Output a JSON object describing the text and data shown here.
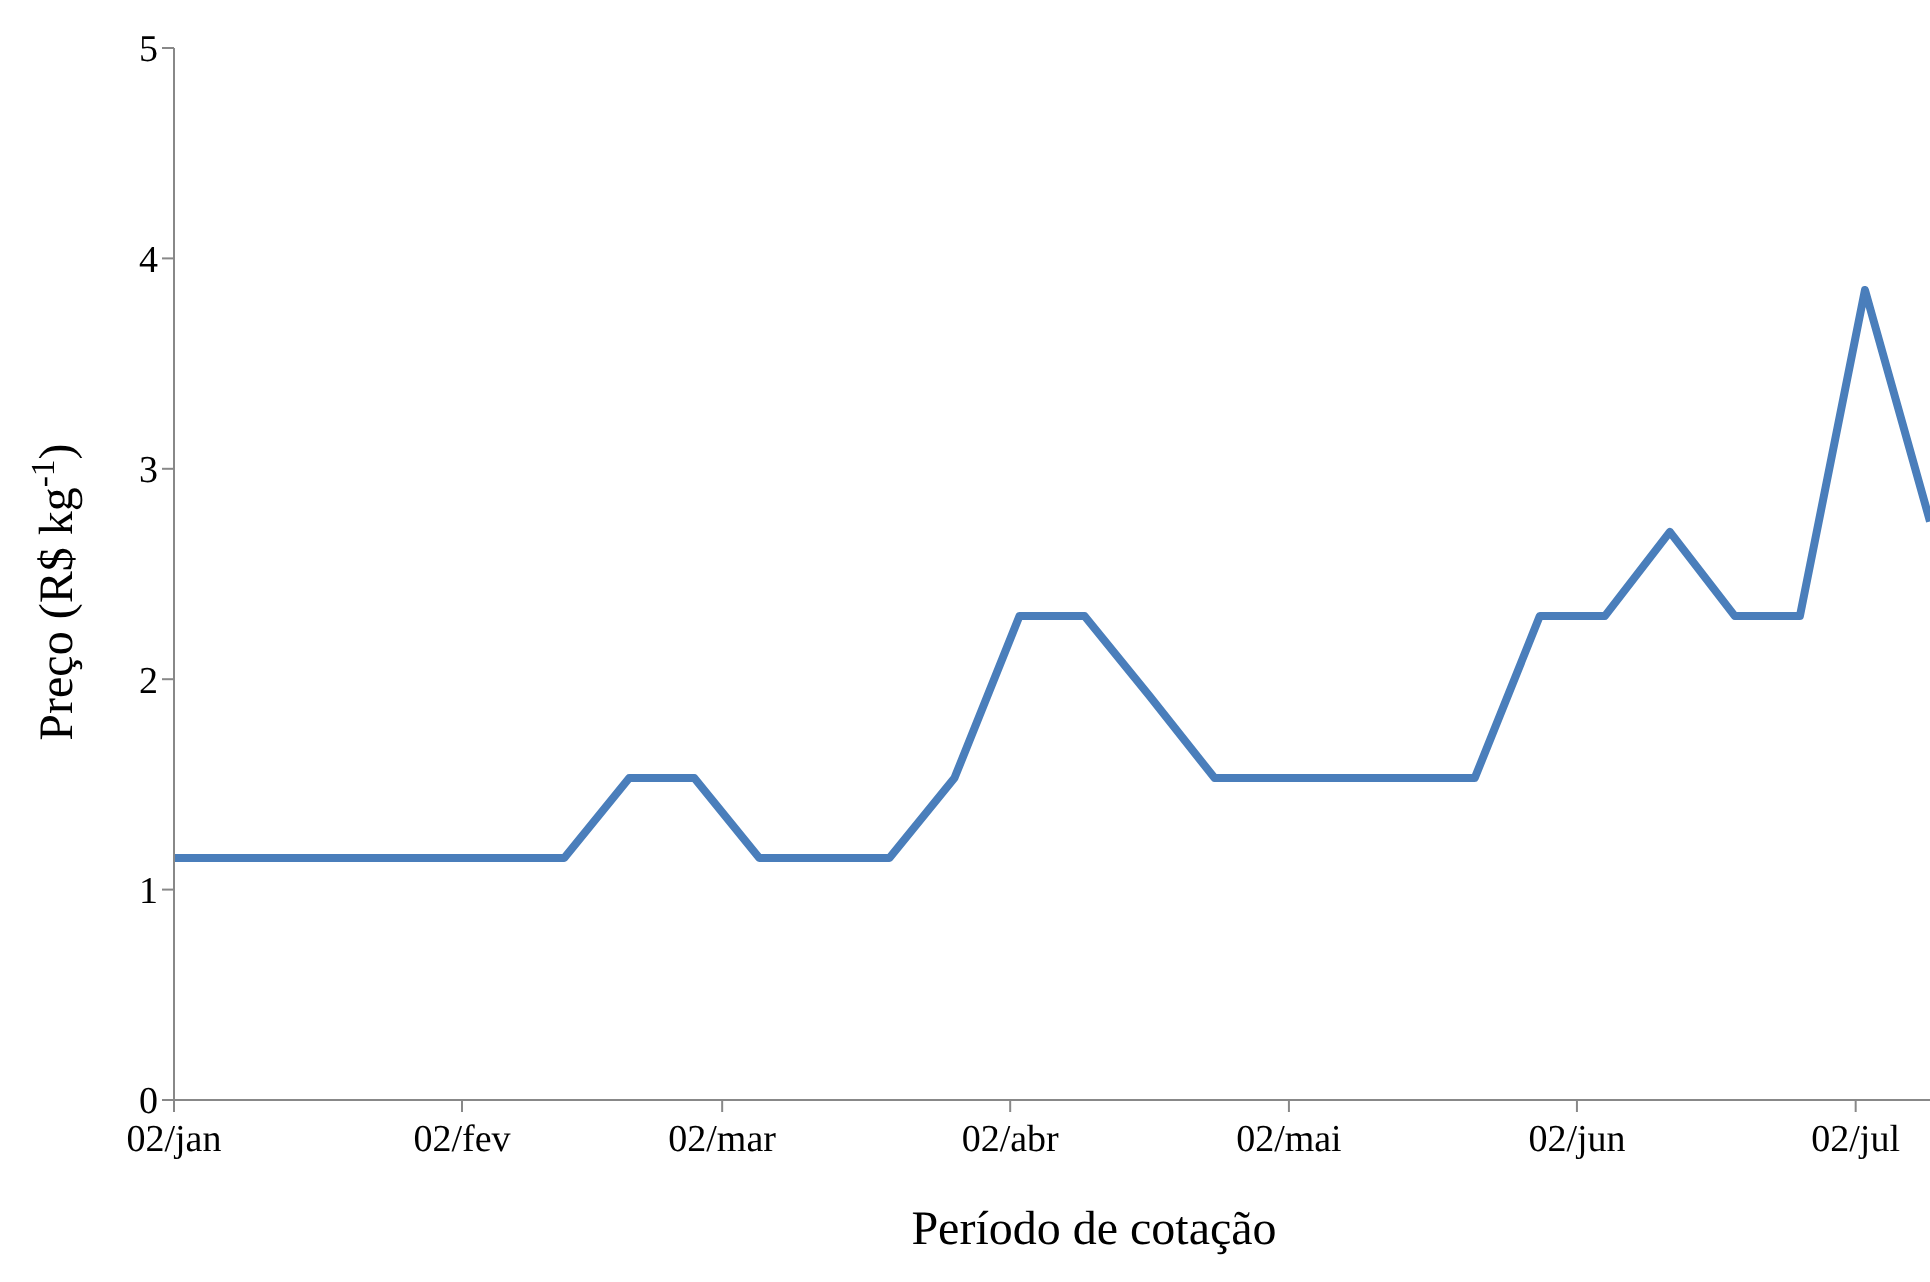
{
  "chart_data": {
    "type": "line",
    "xlabel": "Período de cotação",
    "ylabel": "Preço (R$ kg$^{-1}$)",
    "x": [
      "--01-02",
      "--01-09",
      "--01-16",
      "--01-23",
      "--01-30",
      "--02-06",
      "--02-13",
      "--02-20",
      "--02-27",
      "--03-06",
      "--03-13",
      "--03-20",
      "--03-27",
      "--04-03",
      "--04-10",
      "--04-17",
      "--04-24",
      "--05-01",
      "--05-08",
      "--05-15",
      "--05-22",
      "--05-29",
      "--06-05",
      "--06-12",
      "--06-19",
      "--06-26",
      "--07-03",
      "--07-10"
    ],
    "series": [
      {
        "color": "#4a7ebb",
        "values": [
          1.15,
          1.15,
          1.15,
          1.15,
          1.15,
          1.15,
          1.15,
          1.53,
          1.53,
          1.15,
          1.15,
          1.15,
          1.53,
          2.3,
          2.3,
          1.92,
          1.53,
          1.53,
          1.53,
          1.53,
          1.53,
          2.3,
          2.3,
          2.7,
          2.3,
          2.3,
          3.85,
          2.75
        ]
      }
    ],
    "xlim": [
      "--01-02",
      "--07-10"
    ],
    "xticks": [
      {
        "value": "--01-02",
        "label": "02/jan"
      },
      {
        "value": "--02-02",
        "label": "02/fev"
      },
      {
        "value": "--03-02",
        "label": "02/mar"
      },
      {
        "value": "--04-02",
        "label": "02/abr"
      },
      {
        "value": "--05-02",
        "label": "02/mai"
      },
      {
        "value": "--06-02",
        "label": "02/jun"
      },
      {
        "value": "--07-02",
        "label": "02/jul"
      }
    ],
    "ylim": [
      0,
      5
    ],
    "yticks": [
      0,
      1,
      2,
      3,
      4,
      5
    ],
    "marker": "none",
    "line_style": "solid"
  }
}
